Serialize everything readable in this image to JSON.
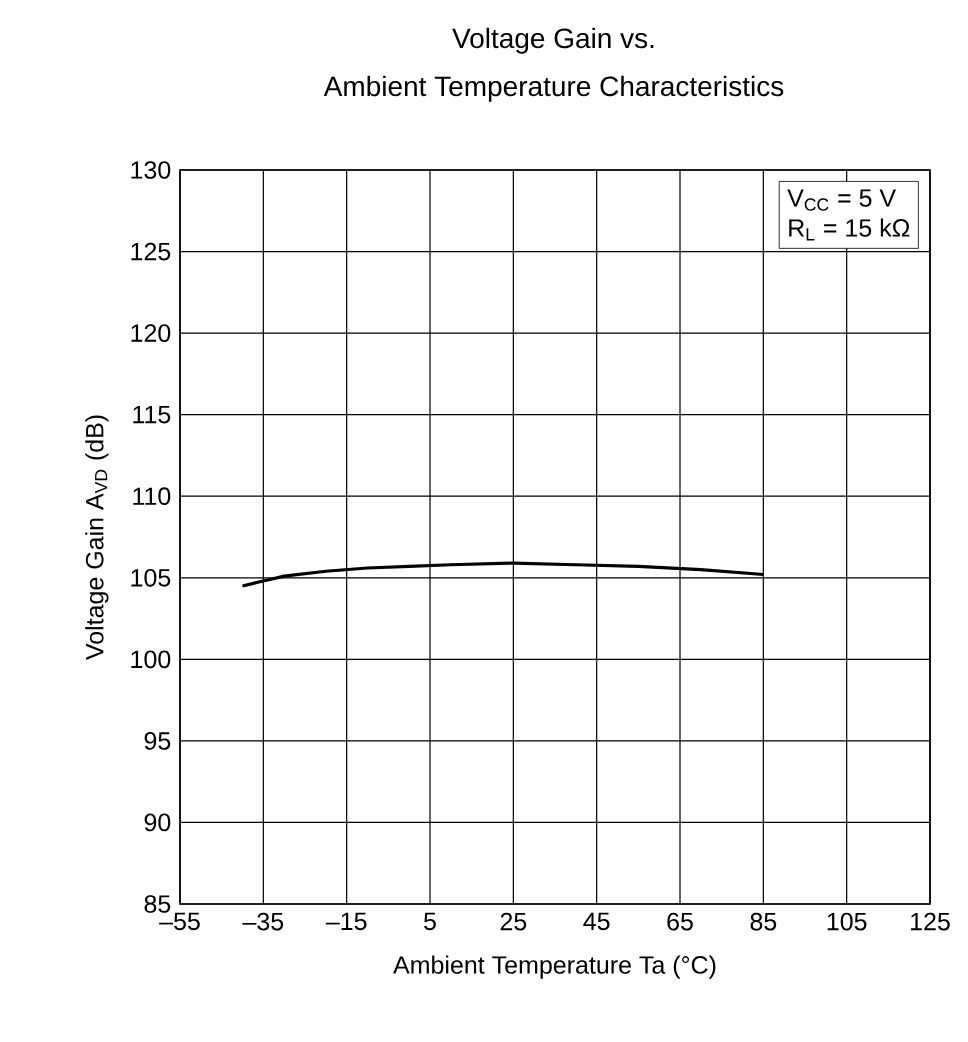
{
  "chart_data": {
    "type": "line",
    "title": "Voltage Gain vs.",
    "subtitle": "Ambient Temperature Characteristics",
    "xlabel": "Ambient Temperature Ta (°C)",
    "ylabel": "Voltage Gain A$_{VD}$ (dB)",
    "annotations": [
      "V$_{CC}$ = 5 V",
      "R$_{L}$ = 15 kΩ"
    ],
    "x": [
      -40,
      -35,
      -30,
      -20,
      -10,
      0,
      10,
      25,
      40,
      55,
      70,
      85
    ],
    "series": [
      {
        "color": "#000000",
        "values": [
          104.5,
          104.8,
          105.1,
          105.4,
          105.6,
          105.7,
          105.8,
          105.9,
          105.8,
          105.7,
          105.5,
          105.2
        ]
      }
    ],
    "xlim": [
      -55,
      125
    ],
    "ylim": [
      85,
      130
    ],
    "xticks": [
      {
        "value": -55,
        "label": "–55"
      },
      {
        "value": -35,
        "label": "–35"
      },
      {
        "value": -15,
        "label": "–15"
      },
      5,
      25,
      45,
      65,
      85,
      105,
      125
    ],
    "yticks": [
      85,
      90,
      95,
      100,
      105,
      110,
      115,
      120,
      125,
      130
    ],
    "grid": true,
    "marker": "none",
    "line_style": "solid"
  }
}
